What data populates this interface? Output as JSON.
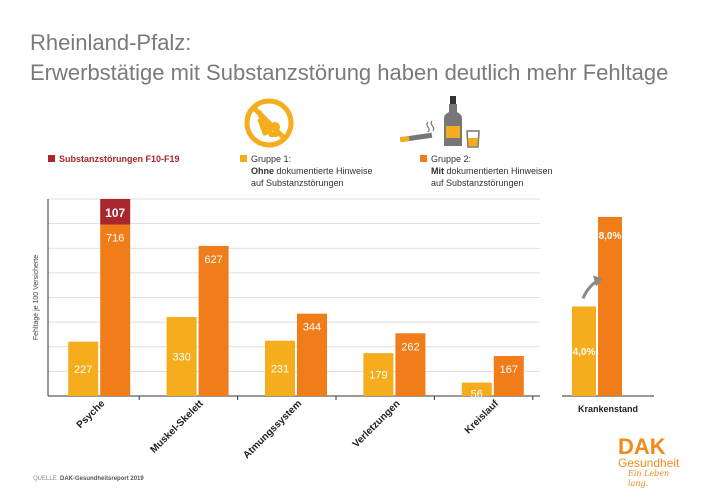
{
  "title_line1": "Rheinland-Pfalz:",
  "title_line2": "Erwerbstätige mit Substanzstörung haben deutlich mehr Fehltage",
  "legend": {
    "substance": "Substanzstörungen F10-F19",
    "group1_line1": "Gruppe 1:",
    "group1_bold": "Ohne",
    "group1_rest": " dokumentierte Hinweise",
    "group1_line3": "auf Substanzstörungen",
    "group2_line1": "Gruppe 2:",
    "group2_bold": "Mit",
    "group2_rest": " dokumentierten Hinweisen",
    "group2_line3": "auf Substanzstörungen"
  },
  "colors": {
    "group1": "#f5ad1e",
    "group2": "#f07c1a",
    "substance": "#a8262c",
    "icon": "#f5ad1e",
    "grid": "#d5d5d5",
    "axis": "#333333"
  },
  "icons": [
    "no-drugs-icon",
    "cigarette-icon",
    "bottle-icon",
    "glass-icon"
  ],
  "source": {
    "label": "QUELLE: ",
    "text": "DAK-Gesundheitsreport 2019"
  },
  "logo": {
    "name": "DAK",
    "subtitle": "Gesundheit",
    "slogan": "Ein Leben lang."
  },
  "chart_data": [
    {
      "type": "bar",
      "ylabel": "Fehltage je 100 Versicherte",
      "categories": [
        "Psyche",
        "Muskel-Skelett",
        "Atmungssystem",
        "Verletzungen",
        "Kreislauf"
      ],
      "series": [
        {
          "name": "Gruppe 1: Ohne dokumentierte Hinweise auf Substanzstörungen",
          "values": [
            227,
            330,
            231,
            179,
            56
          ]
        },
        {
          "name": "Gruppe 2: Mit dokumentierten Hinweisen auf Substanzstörungen",
          "values": [
            716,
            627,
            344,
            262,
            167
          ]
        },
        {
          "name": "Substanzstörungen F10-F19",
          "values": [
            107,
            0,
            0,
            0,
            0
          ]
        }
      ],
      "stacked_on_group2": true,
      "ylim": [
        0,
        823
      ],
      "grid": true
    },
    {
      "type": "bar",
      "categories": [
        "Krankenstand"
      ],
      "series": [
        {
          "name": "Gruppe 1",
          "values": [
            4.0
          ],
          "labels": [
            "4,0%"
          ]
        },
        {
          "name": "Gruppe 2",
          "values": [
            8.0
          ],
          "labels": [
            "8,0%"
          ]
        }
      ],
      "ylim": [
        0,
        8.8
      ]
    }
  ]
}
